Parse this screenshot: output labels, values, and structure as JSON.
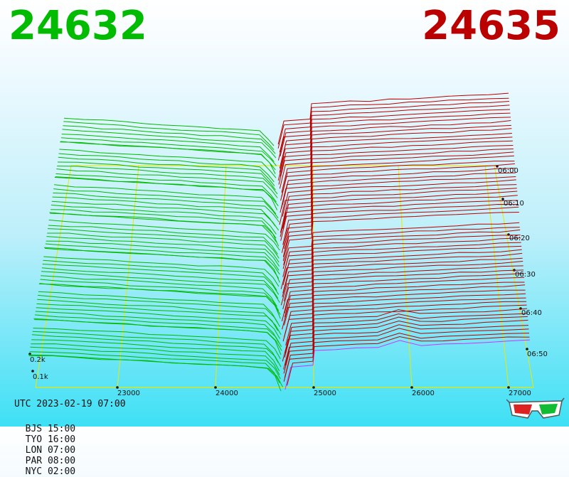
{
  "prices": {
    "bid": "24632",
    "ask": "24635"
  },
  "footer": {
    "utc": "UTC 2023-02-19 07:00",
    "zones": [
      "BJS 15:00",
      "TYO 16:00",
      "LON 07:00",
      "PAR 08:00",
      "NYC 02:00"
    ]
  },
  "colors": {
    "bid": "#00bb00",
    "ask": "#bb0000",
    "grid": "#e8e800",
    "last_ask": "#cc33ff"
  },
  "icons": {
    "stereo_glasses": "3d-glasses-icon"
  },
  "chart_data": {
    "type": "area",
    "title": "",
    "xlabel": "",
    "ylabel": "",
    "x_ticks": [
      "23000",
      "24000",
      "25000",
      "26000",
      "27000"
    ],
    "time_ticks": [
      "06:00",
      "06:10",
      "06:20",
      "06:30",
      "06:40",
      "06:50"
    ],
    "depth_ticks": [
      "0.2k",
      "0.1k"
    ],
    "series": [
      {
        "name": "",
        "side": "bid",
        "price_range": [
          22000,
          24600
        ]
      },
      {
        "name": "",
        "side": "ask",
        "price_range": [
          24635,
          27200
        ]
      }
    ]
  }
}
